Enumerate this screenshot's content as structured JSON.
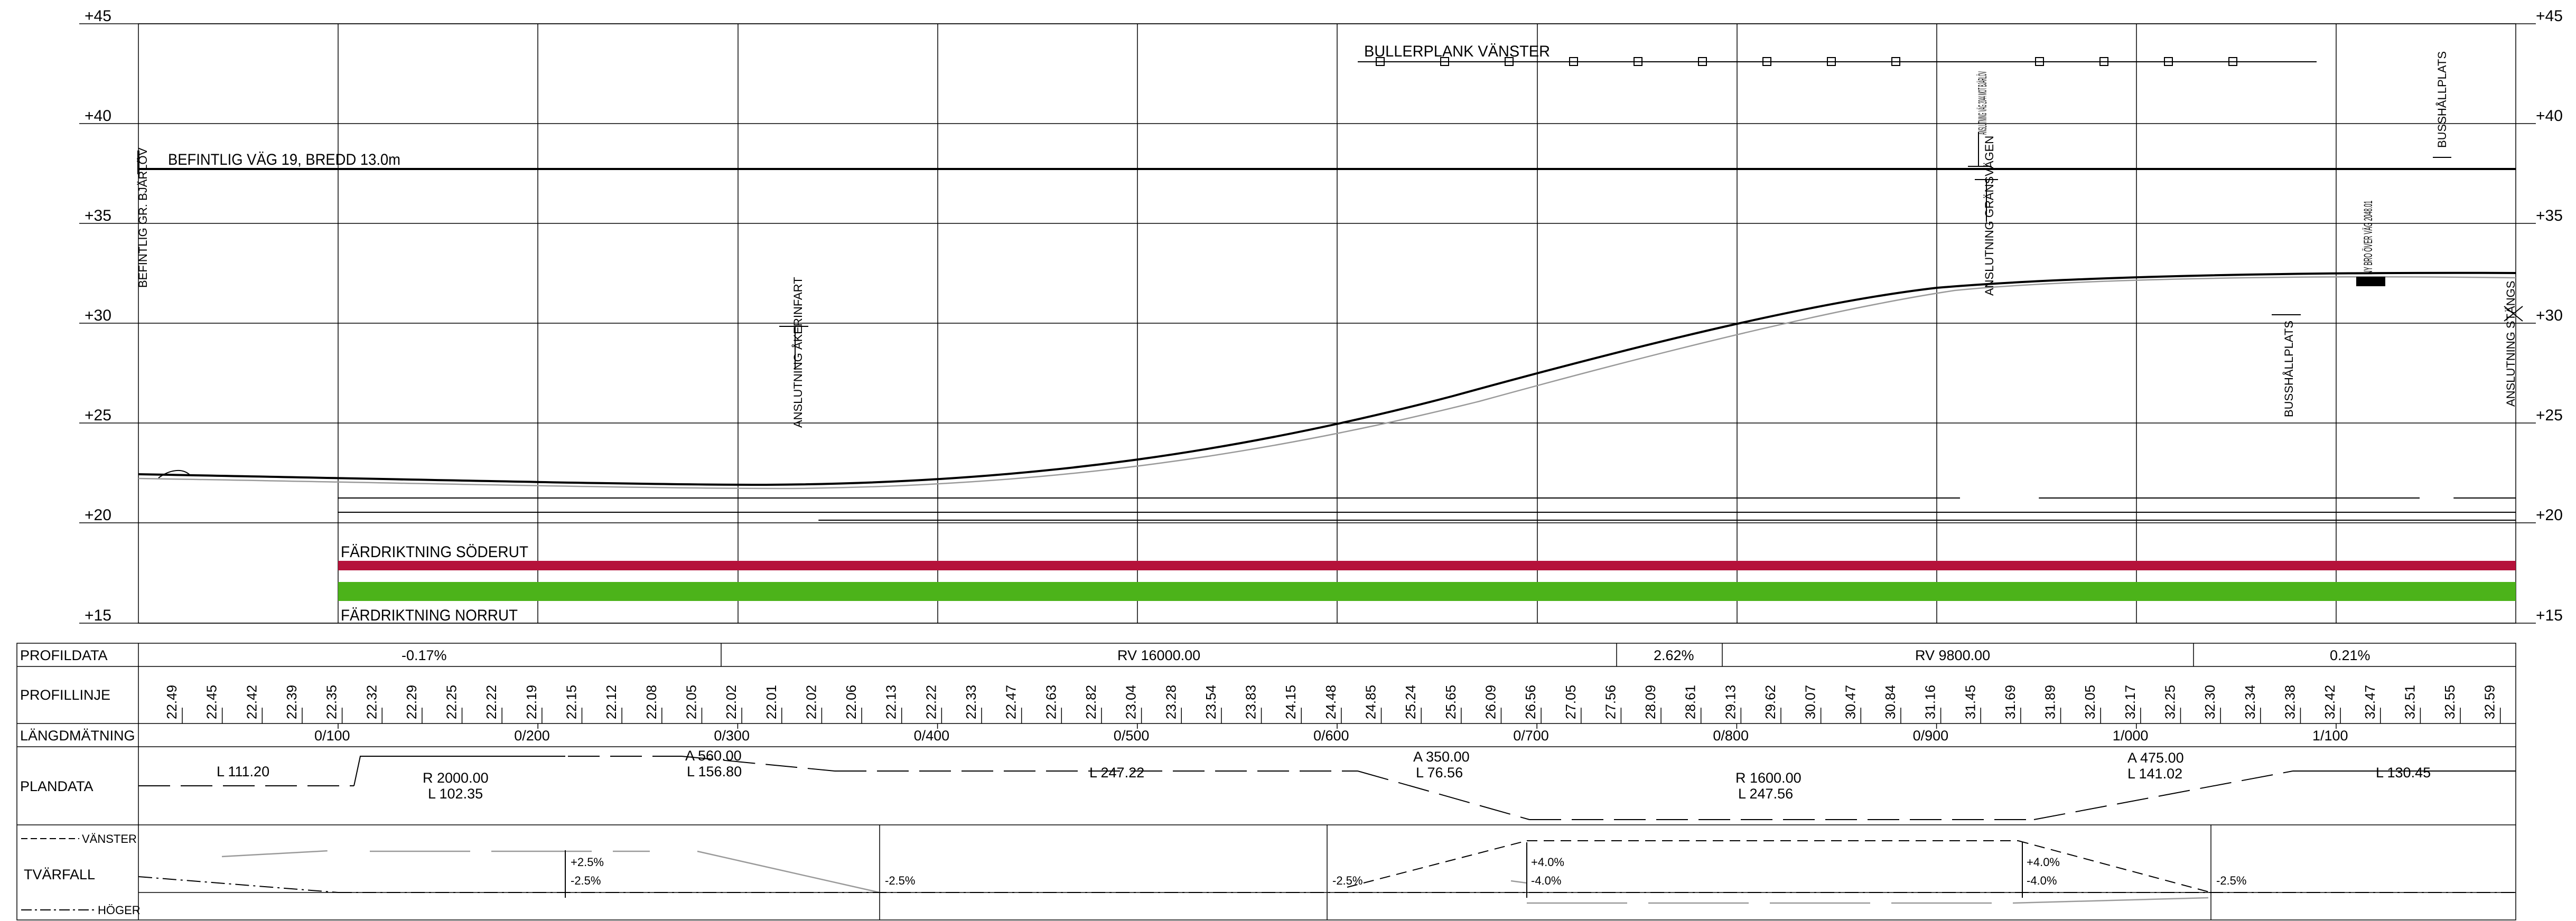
{
  "elevation_axis": {
    "labels": [
      "+45",
      "+40",
      "+35",
      "+30",
      "+25",
      "+20",
      "+15"
    ]
  },
  "annotations": {
    "existing_road": "BEFINTLIG VÄG 19, BREDD 13.0m",
    "existing_road_left": "BEFINTLIG GR. BJÄRLÖV",
    "noise_barrier": "BULLERPLANK VÄNSTER",
    "connection_akerinfart": "ANSLUTNING ÅKERINFART",
    "connection_vag2044": "ANSLUTNING VÄG 2044 MOT BJÄRLÖV",
    "connection_gransvagen": "ANSLUTNING GRÄNSVÄGEN",
    "bus_stop_1": "BUSSHÅLLPLATS",
    "bus_stop_2": "BUSSHÅLLPLATS",
    "new_bridge": "NY BRO ÖVER VÄG 2048.01",
    "connection_stangs": "ANSLUTNING STÄNGS",
    "direction_south": "FÄRDRIKTNING SÖDERUT",
    "direction_north": "FÄRDRIKTNING NORRUT"
  },
  "band_colors": {
    "south": "#b5123a",
    "north": "#4cb31a"
  },
  "table": {
    "row_labels": {
      "profildata": "PROFILDATA",
      "profillinje": "PROFILLINJE",
      "langdmatning": "LÄNGDMÄTNING",
      "plandata": "PLANDATA",
      "tvarfall": "TVÄRFALL",
      "vanster": "VÄNSTER",
      "hoger": "HÖGER"
    },
    "profildata": {
      "grade_1": "-0.17%",
      "curve_1": "RV 16000.00",
      "grade_2": "2.62%",
      "curve_2": "RV 9800.00",
      "grade_3": "0.21%"
    },
    "profillinje": [
      "22.49",
      "22.45",
      "22.42",
      "22.39",
      "22.35",
      "22.32",
      "22.29",
      "22.25",
      "22.22",
      "22.19",
      "22.15",
      "22.12",
      "22.08",
      "22.05",
      "22.02",
      "22.01",
      "22.02",
      "22.06",
      "22.13",
      "22.22",
      "22.33",
      "22.47",
      "22.63",
      "22.82",
      "23.04",
      "23.28",
      "23.54",
      "23.83",
      "24.15",
      "24.48",
      "24.85",
      "25.24",
      "25.65",
      "26.09",
      "26.56",
      "27.05",
      "27.56",
      "28.09",
      "28.61",
      "29.13",
      "29.62",
      "30.07",
      "30.47",
      "30.84",
      "31.16",
      "31.45",
      "31.69",
      "31.89",
      "32.05",
      "32.17",
      "32.25",
      "32.30",
      "32.34",
      "32.38",
      "32.42",
      "32.47",
      "32.51",
      "32.55",
      "32.59"
    ],
    "langdmatning": [
      "0/100",
      "0/200",
      "0/300",
      "0/400",
      "0/500",
      "0/600",
      "0/700",
      "0/800",
      "0/900",
      "1/000",
      "1/100"
    ],
    "plandata": {
      "l1": "L  111.20",
      "r1": "R  2000.00",
      "l1b": "L  102.35",
      "a1": "A  560.00",
      "l2": "L  156.80",
      "l3": "L  247.22",
      "a2": "A  350.00",
      "l4": "L  76.56",
      "r2": "R  1600.00",
      "l5": "L  247.56",
      "a3": "A  475.00",
      "l6": "L  141.02",
      "l7": "L  130.45"
    },
    "tvarfall": [
      "+2.5%",
      "-2.5%",
      "-2.5%",
      "-2.5%",
      "+4.0%",
      "-4.0%",
      "+4.0%",
      "-4.0%",
      "-2.5%"
    ]
  }
}
